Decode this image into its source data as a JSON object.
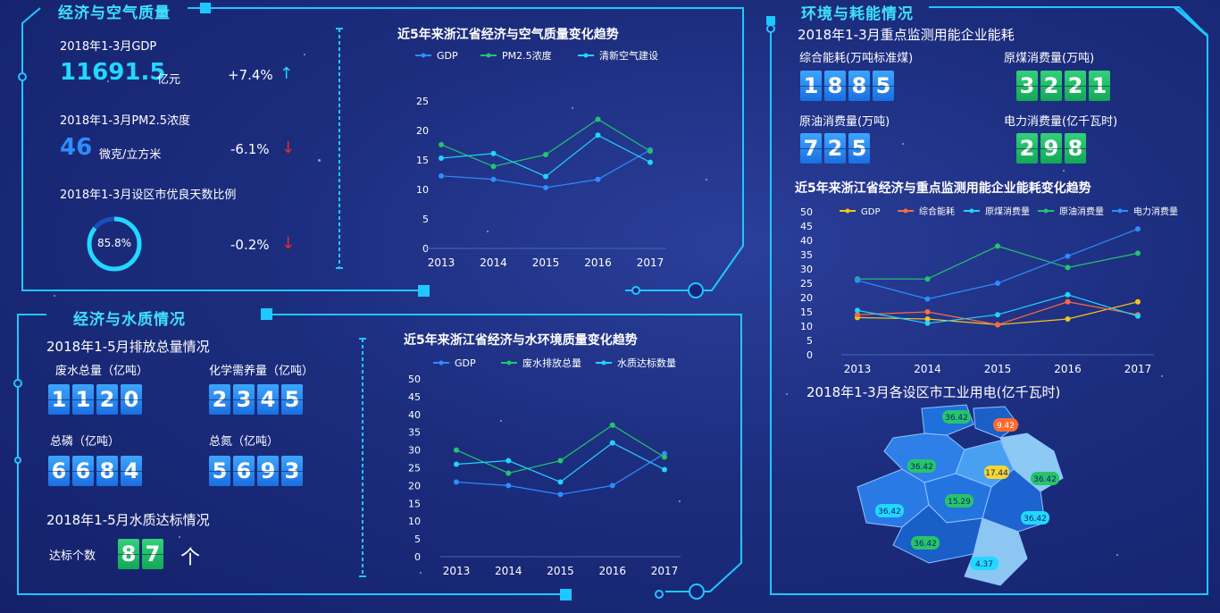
{
  "air": {
    "title": "经济与空气质量",
    "gdp_label": "2018年1-3月GDP",
    "gdp_value": "11691.5",
    "gdp_unit": "亿元",
    "gdp_change": "+7.4%",
    "pm_label": "2018年1-3月PM2.5浓度",
    "pm_value": "46",
    "pm_unit": "微克/立方米",
    "pm_change": "-6.1%",
    "days_label": "2018年1-3月设区市优良天数比例",
    "days_value": "85.8%",
    "days_fraction": 0.858,
    "days_change": "-0.2%"
  },
  "water": {
    "title": "经济与水质情况",
    "emission_title": "2018年1-5月排放总量情况",
    "items": [
      {
        "label": "废水总量（亿吨）",
        "digits": [
          "1",
          "1",
          "2",
          "0"
        ]
      },
      {
        "label": "化学需养量（亿吨）",
        "digits": [
          "2",
          "3",
          "4",
          "5"
        ]
      },
      {
        "label": "总磷（亿吨）",
        "digits": [
          "6",
          "6",
          "8",
          "4"
        ]
      },
      {
        "label": "总氮（亿吨）",
        "digits": [
          "5",
          "6",
          "9",
          "3"
        ]
      }
    ],
    "quality_title": "2018年1-5月水质达标情况",
    "count_label": "达标个数",
    "count_digits": [
      "8",
      "7"
    ],
    "count_unit": "个"
  },
  "energy": {
    "title": "环境与耗能情况",
    "subtitle": "2018年1-3月重点监测用能企业能耗",
    "items": [
      {
        "label": "综合能耗(万吨标准煤)",
        "digits": [
          "1",
          "8",
          "8",
          "5"
        ],
        "color": "blue"
      },
      {
        "label": "原煤消费量(万吨)",
        "digits": [
          "3",
          "2",
          "2",
          "1"
        ],
        "color": "green"
      },
      {
        "label": "原油消费量(万吨)",
        "digits": [
          "7",
          "2",
          "5"
        ],
        "color": "blue"
      },
      {
        "label": "电力消费量(亿千瓦时)",
        "digits": [
          "2",
          "9",
          "8"
        ],
        "color": "green"
      }
    ],
    "map_title": "2018年1-3月各设区市工业用电(亿千瓦时)",
    "map_values": [
      "36.42",
      "9.42",
      "36.42",
      "17.44",
      "36.42",
      "15.29",
      "36.42",
      "36.42",
      "36.42",
      "4.37"
    ]
  },
  "chart_data": [
    {
      "type": "line",
      "title": "近5年来浙江省经济与空气质量变化趋势",
      "x": [
        "2013",
        "2014",
        "2015",
        "2016",
        "2017"
      ],
      "ylim": [
        0,
        25
      ],
      "yticks": [
        "0",
        "5",
        "10",
        "15",
        "20",
        "25"
      ],
      "series": [
        {
          "name": "GDP",
          "color": "#2f8cff",
          "values": [
            12.3,
            11.7,
            10.3,
            11.7,
            16.7
          ]
        },
        {
          "name": "PM2.5浓度",
          "color": "#22c46e",
          "values": [
            17.6,
            13.9,
            15.9,
            21.9,
            16.5
          ]
        },
        {
          "name": "清新空气建设",
          "color": "#20d4ff",
          "values": [
            15.3,
            16.1,
            12.2,
            19.2,
            14.6
          ]
        }
      ]
    },
    {
      "type": "line",
      "title": "近5年来浙江省经济与水环境质量变化趋势",
      "x": [
        "2013",
        "2014",
        "2015",
        "2016",
        "2017"
      ],
      "ylim": [
        0,
        50
      ],
      "yticks": [
        "0",
        "5",
        "10",
        "15",
        "20",
        "25",
        "30",
        "35",
        "40",
        "45",
        "50"
      ],
      "series": [
        {
          "name": "GDP",
          "color": "#2f8cff",
          "values": [
            21,
            20,
            17.5,
            20,
            29
          ]
        },
        {
          "name": "废水排放总量",
          "color": "#22c46e",
          "values": [
            30,
            23.5,
            27,
            37,
            28
          ]
        },
        {
          "name": "水质达标数量",
          "color": "#20d4ff",
          "values": [
            26,
            27,
            21,
            32,
            24.5
          ]
        }
      ]
    },
    {
      "type": "line",
      "title": "近5年来浙江省经济与重点监测用能企业能耗变化趋势",
      "x": [
        "2013",
        "2014",
        "2015",
        "2016",
        "2017"
      ],
      "ylim": [
        0,
        50
      ],
      "yticks": [
        "0",
        "5",
        "10",
        "15",
        "20",
        "25",
        "30",
        "35",
        "40",
        "45",
        "50"
      ],
      "series": [
        {
          "name": "GDP",
          "color": "#f5c518",
          "values": [
            13,
            12.5,
            10.5,
            12.5,
            18.5
          ]
        },
        {
          "name": "综合能耗",
          "color": "#ff6a3d",
          "values": [
            14,
            15,
            10.5,
            18.5,
            14
          ]
        },
        {
          "name": "原煤消费量",
          "color": "#20d4ff",
          "values": [
            15.5,
            11,
            14,
            21,
            13.5
          ]
        },
        {
          "name": "原油消费量",
          "color": "#22c46e",
          "values": [
            26.5,
            26.5,
            38,
            30.5,
            35.5
          ]
        },
        {
          "name": "电力消费量",
          "color": "#2f8cff",
          "values": [
            26,
            19.5,
            25,
            34.5,
            44
          ]
        }
      ]
    }
  ]
}
